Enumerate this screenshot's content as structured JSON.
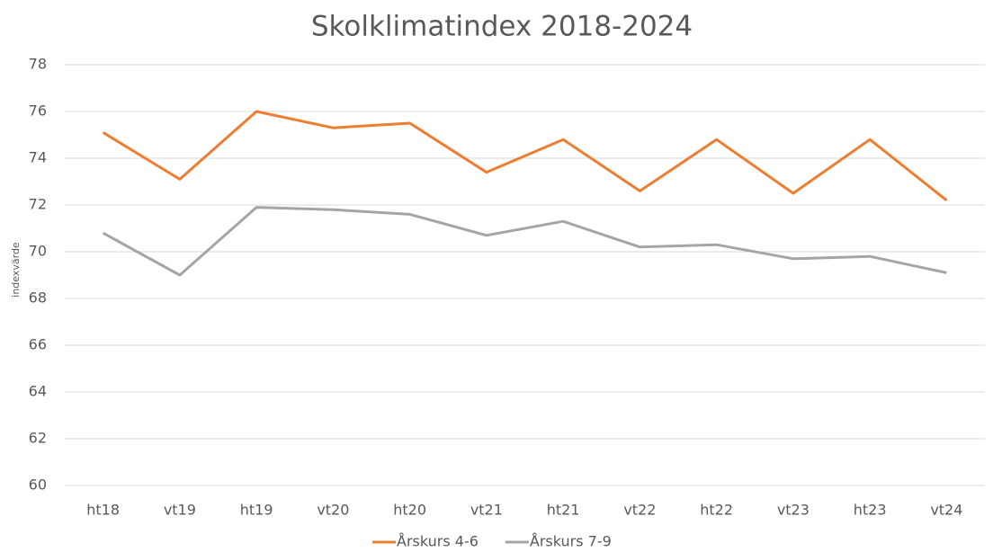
{
  "chart_data": {
    "type": "line",
    "title": "Skolklimatindex 2018-2024",
    "y_label": "indexvärde",
    "categories": [
      "ht18",
      "vt19",
      "ht19",
      "vt20",
      "ht20",
      "vt21",
      "ht21",
      "vt22",
      "ht22",
      "vt23",
      "ht23",
      "vt24"
    ],
    "series": [
      {
        "name": "Årskurs 4-6",
        "color": "#ed7d31",
        "values": [
          75.1,
          73.1,
          76.0,
          75.3,
          75.5,
          73.4,
          74.8,
          72.6,
          74.8,
          72.5,
          74.8,
          72.2
        ]
      },
      {
        "name": "Årskurs 7-9",
        "color": "#a5a5a5",
        "values": [
          70.8,
          69.0,
          71.9,
          71.8,
          71.6,
          70.7,
          71.3,
          70.2,
          70.3,
          69.7,
          69.8,
          69.1
        ]
      }
    ],
    "ylim": [
      60,
      78
    ],
    "yticks": [
      60,
      62,
      64,
      66,
      68,
      70,
      72,
      74,
      76,
      78
    ],
    "grid": true,
    "legend": "bottom"
  }
}
